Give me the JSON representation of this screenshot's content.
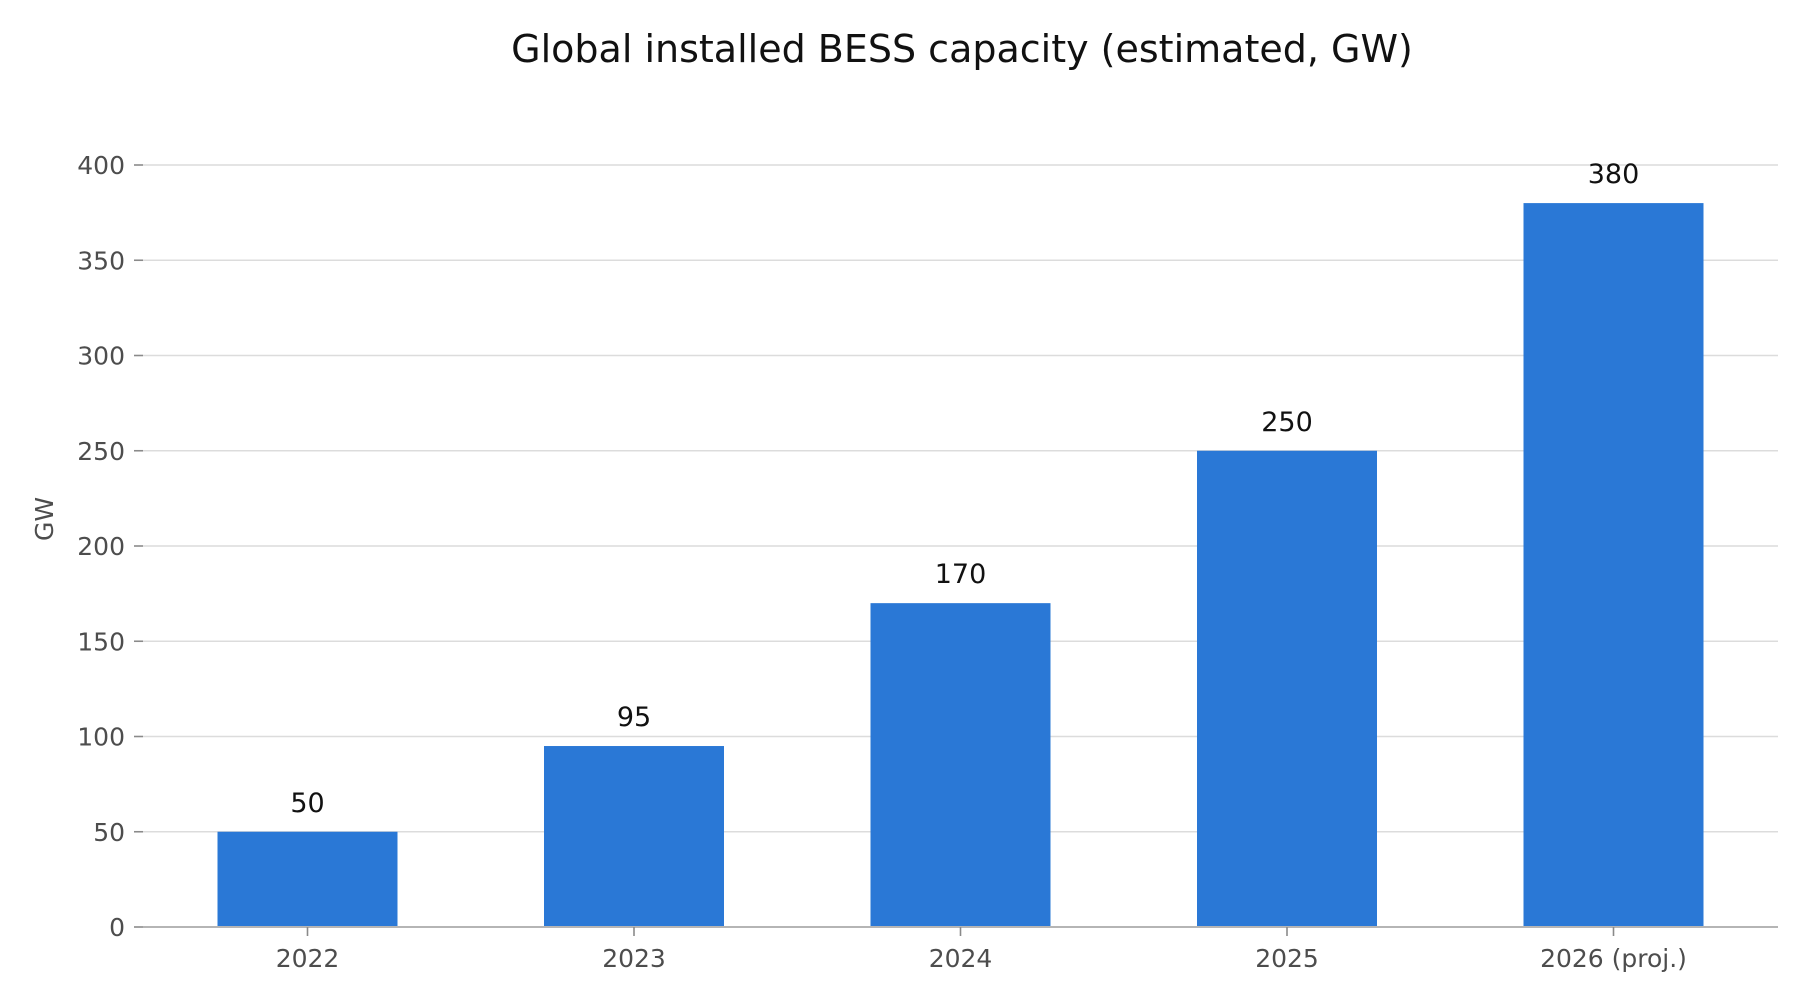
{
  "chart_data": {
    "type": "bar",
    "title": "Global installed BESS capacity (estimated, GW)",
    "xlabel": "",
    "ylabel": "GW",
    "categories": [
      "2022",
      "2023",
      "2024",
      "2025",
      "2026 (proj.)"
    ],
    "values": [
      50,
      95,
      170,
      250,
      380
    ],
    "data_labels": [
      "50",
      "95",
      "170",
      "250",
      "380"
    ],
    "ylim": [
      0,
      400
    ],
    "yticks": [
      0,
      50,
      100,
      150,
      200,
      250,
      300,
      350,
      400
    ],
    "ytick_labels": [
      "0",
      "50",
      "100",
      "150",
      "200",
      "250",
      "300",
      "350",
      "400"
    ],
    "grid": "horizontal",
    "bar_color": "#2a78d6",
    "grid_color": "#dcdcdc",
    "text_color": "#4d4d4d",
    "legend": "none"
  }
}
